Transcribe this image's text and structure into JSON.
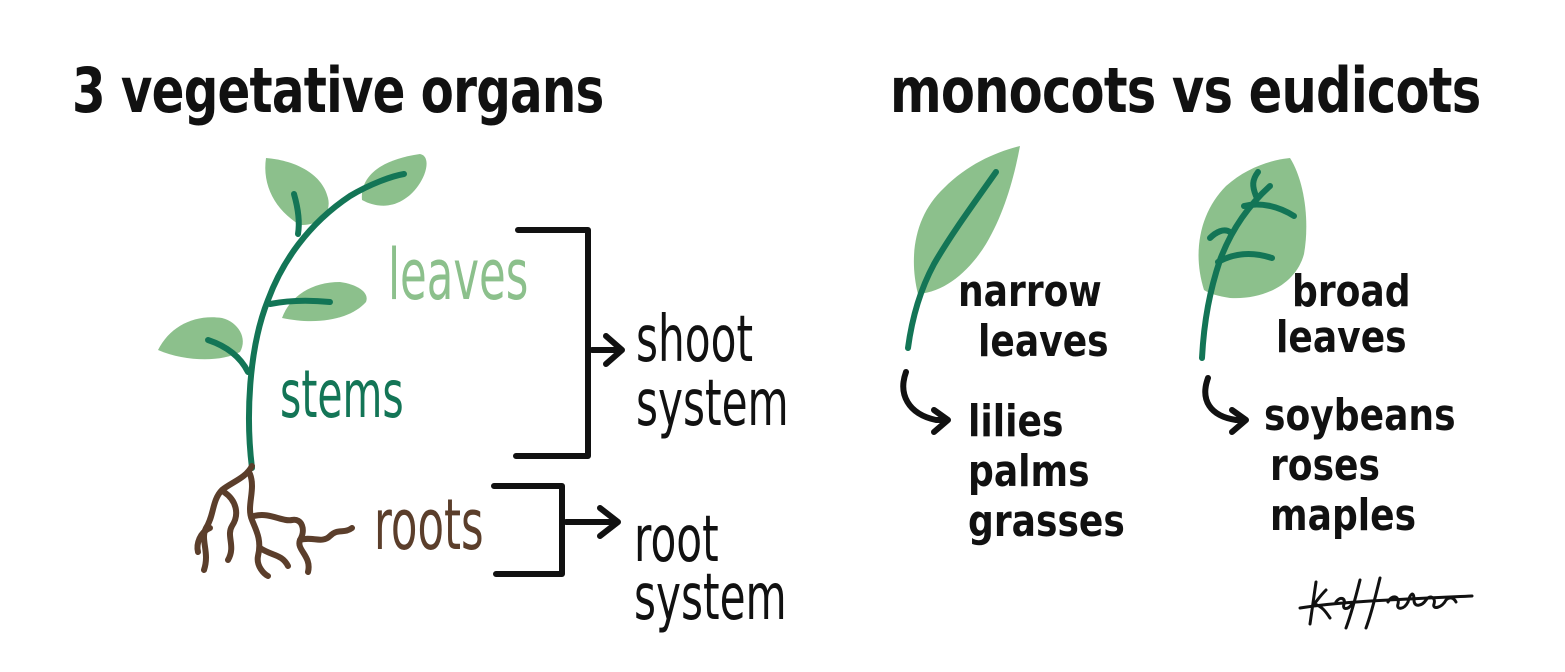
{
  "colors": {
    "leaf": "#8cc08c",
    "stem": "#137556",
    "root": "#5b3e2b",
    "ink": "#111111"
  },
  "left_panel": {
    "title": "3 vegetative organs",
    "labels": {
      "leaves": "leaves",
      "stems": "stems",
      "roots": "roots"
    },
    "shoot_system": [
      "shoot",
      "system"
    ],
    "root_system": [
      "root",
      "system"
    ]
  },
  "right_panel": {
    "title": "monocots vs eudicots",
    "monocots": {
      "description": [
        "narrow",
        "leaves"
      ],
      "examples": [
        "lilies",
        "palms",
        "grasses"
      ]
    },
    "eudicots": {
      "description": [
        "broad",
        "leaves"
      ],
      "examples": [
        "soybeans",
        "roses",
        "maples"
      ]
    }
  }
}
